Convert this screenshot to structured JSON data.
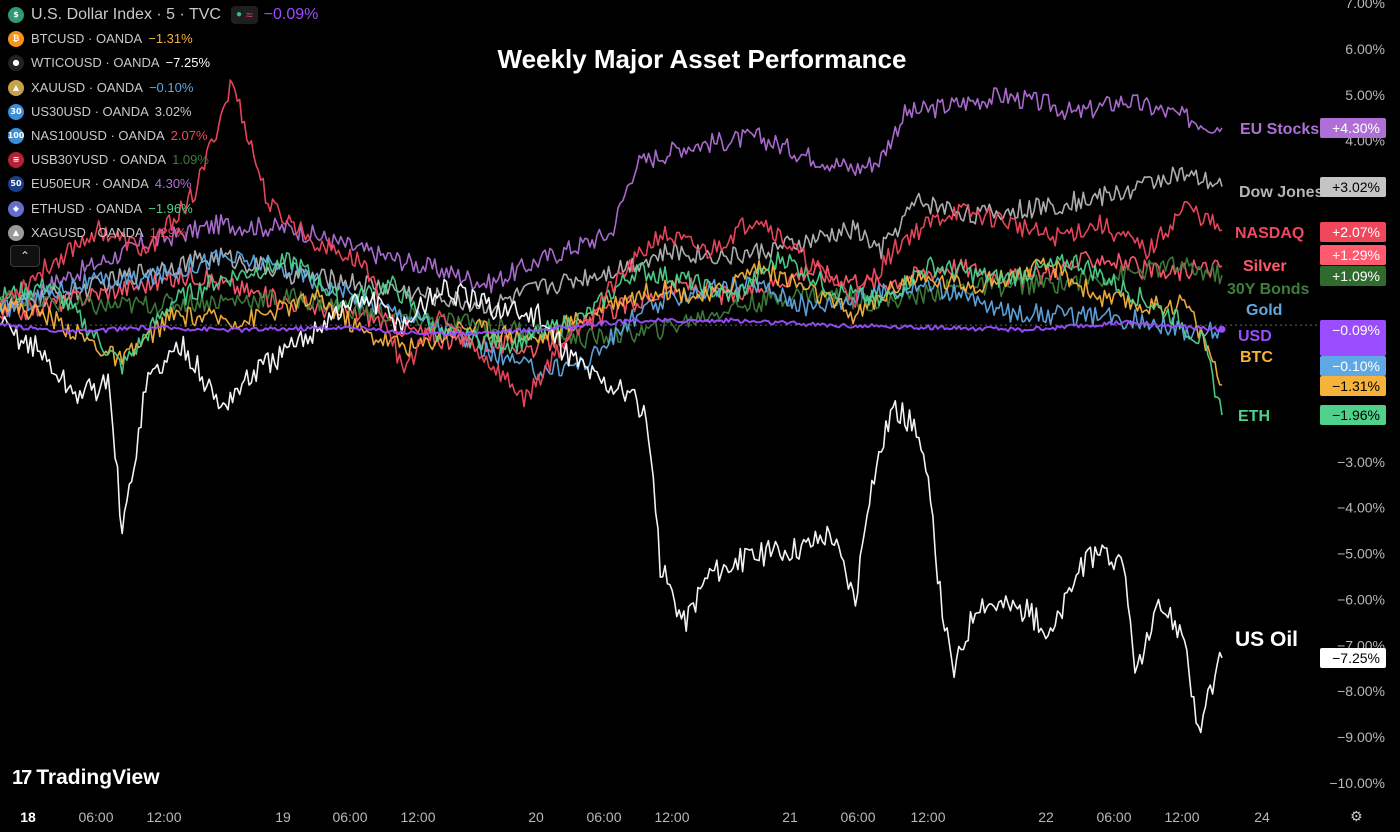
{
  "title": "Weekly Major Asset Performance",
  "legend": {
    "main": {
      "symbol": "U.S. Dollar Index · 5 · TVC",
      "value": "−0.09%",
      "icon_color": "#2e9c6e",
      "icon_glyph": "$",
      "value_color": "#9a4dff"
    },
    "items": [
      {
        "symbol": "BTCUSD · OANDA",
        "value": "−1.31%",
        "icon_color": "#f7931a",
        "icon_glyph": "₿",
        "value_color": "#f7b23b"
      },
      {
        "symbol": "WTICOUSD · OANDA",
        "value": "−7.25%",
        "icon_color": "#222222",
        "icon_glyph": "●",
        "value_color": "#ffffff"
      },
      {
        "symbol": "XAUUSD · OANDA",
        "value": "−0.10%",
        "icon_color": "#c8a24a",
        "icon_glyph": "▲",
        "value_color": "#5fa8e3"
      },
      {
        "symbol": "US30USD · OANDA",
        "value": "3.02%",
        "icon_color": "#3c8ed6",
        "icon_glyph": "30",
        "value_color": "#c9c9c9"
      },
      {
        "symbol": "NAS100USD · OANDA",
        "value": "2.07%",
        "icon_color": "#3c8ed6",
        "icon_glyph": "100",
        "value_color": "#f0475d"
      },
      {
        "symbol": "USB30YUSD · OANDA",
        "value": "1.09%",
        "icon_color": "#b22234",
        "icon_glyph": "≡",
        "value_color": "#3f7d3a"
      },
      {
        "symbol": "EU50EUR · OANDA",
        "value": "4.30%",
        "icon_color": "#1a3e8c",
        "icon_glyph": "50",
        "value_color": "#b06fd6"
      },
      {
        "symbol": "ETHUSD · OANDA",
        "value": "−1.96%",
        "icon_color": "#6270c9",
        "icon_glyph": "◆",
        "value_color": "#4fd18b"
      },
      {
        "symbol": "XAGUSD · OANDA",
        "value": "1.29%",
        "icon_color": "#9a9a9a",
        "icon_glyph": "▲",
        "value_color": "#f0475d"
      }
    ]
  },
  "collapse_glyph": "⌃",
  "logo": {
    "mark": "17",
    "text": "TradingView"
  },
  "settings_glyph": "⚙",
  "chart_data": {
    "type": "line",
    "y_unit": "%",
    "ylim": [
      -10.0,
      7.0
    ],
    "y_ticks": [
      "7.00%",
      "6.00%",
      "5.00%",
      "4.00%",
      "−3.00%",
      "−4.00%",
      "−5.00%",
      "−6.00%",
      "−7.00%",
      "−8.00%",
      "−9.00%",
      "−10.00%"
    ],
    "x_ticks": [
      "18",
      "06:00",
      "12:00",
      "19",
      "06:00",
      "12:00",
      "20",
      "06:00",
      "12:00",
      "21",
      "06:00",
      "12:00",
      "22",
      "06:00",
      "12:00",
      "24"
    ],
    "x_ticks_bold": [
      "18"
    ],
    "series": [
      {
        "name": "EU Stocks",
        "color": "#b06fd6",
        "tag": "+4.30%",
        "final": 4.3,
        "points": [
          [
            0,
            0.3
          ],
          [
            0.05,
            1.0
          ],
          [
            0.12,
            1.8
          ],
          [
            0.18,
            2.2
          ],
          [
            0.24,
            2.1
          ],
          [
            0.3,
            1.6
          ],
          [
            0.36,
            1.2
          ],
          [
            0.4,
            0.9
          ],
          [
            0.44,
            1.4
          ],
          [
            0.5,
            2.0
          ],
          [
            0.52,
            3.5
          ],
          [
            0.56,
            3.9
          ],
          [
            0.62,
            4.1
          ],
          [
            0.66,
            3.7
          ],
          [
            0.7,
            3.4
          ],
          [
            0.72,
            3.6
          ],
          [
            0.74,
            4.6
          ],
          [
            0.78,
            4.8
          ],
          [
            0.82,
            5.0
          ],
          [
            0.86,
            4.8
          ],
          [
            0.88,
            4.6
          ],
          [
            0.92,
            4.9
          ],
          [
            0.96,
            4.6
          ],
          [
            1.0,
            4.3
          ]
        ]
      },
      {
        "name": "Dow Jones",
        "color": "#b5b5b5",
        "tag": "+3.02%",
        "final": 3.02,
        "points": [
          [
            0,
            0.4
          ],
          [
            0.06,
            0.7
          ],
          [
            0.12,
            1.2
          ],
          [
            0.18,
            1.5
          ],
          [
            0.24,
            1.1
          ],
          [
            0.3,
            0.9
          ],
          [
            0.36,
            0.6
          ],
          [
            0.4,
            0.4
          ],
          [
            0.44,
            0.8
          ],
          [
            0.5,
            1.2
          ],
          [
            0.55,
            1.6
          ],
          [
            0.6,
            1.5
          ],
          [
            0.66,
            1.8
          ],
          [
            0.7,
            2.1
          ],
          [
            0.72,
            1.6
          ],
          [
            0.75,
            2.7
          ],
          [
            0.8,
            2.4
          ],
          [
            0.86,
            2.6
          ],
          [
            0.92,
            2.9
          ],
          [
            0.96,
            3.3
          ],
          [
            1.0,
            3.02
          ]
        ]
      },
      {
        "name": "NASDAQ",
        "color": "#f0475d",
        "tag": "+2.07%",
        "final": 2.07,
        "points": [
          [
            0,
            0.5
          ],
          [
            0.04,
            1.3
          ],
          [
            0.08,
            2.1
          ],
          [
            0.12,
            1.6
          ],
          [
            0.16,
            2.9
          ],
          [
            0.19,
            5.3
          ],
          [
            0.22,
            2.6
          ],
          [
            0.26,
            1.8
          ],
          [
            0.3,
            1.3
          ],
          [
            0.33,
            -1.0
          ],
          [
            0.36,
            0.2
          ],
          [
            0.4,
            -0.8
          ],
          [
            0.43,
            -1.6
          ],
          [
            0.46,
            -0.4
          ],
          [
            0.5,
            0.8
          ],
          [
            0.54,
            2.0
          ],
          [
            0.58,
            1.6
          ],
          [
            0.62,
            2.4
          ],
          [
            0.66,
            1.4
          ],
          [
            0.7,
            0.6
          ],
          [
            0.74,
            1.9
          ],
          [
            0.78,
            2.5
          ],
          [
            0.82,
            2.3
          ],
          [
            0.86,
            1.9
          ],
          [
            0.9,
            2.2
          ],
          [
            0.94,
            1.6
          ],
          [
            0.97,
            2.6
          ],
          [
            1.0,
            2.07
          ]
        ]
      },
      {
        "name": "Silver",
        "color": "#ff5a6e",
        "tag": "+1.29%",
        "final": 1.29,
        "points": [
          [
            0,
            0.2
          ],
          [
            0.08,
            0.7
          ],
          [
            0.16,
            1.1
          ],
          [
            0.22,
            0.6
          ],
          [
            0.3,
            0.2
          ],
          [
            0.36,
            -0.3
          ],
          [
            0.44,
            -0.5
          ],
          [
            0.5,
            0.3
          ],
          [
            0.56,
            0.9
          ],
          [
            0.6,
            0.6
          ],
          [
            0.66,
            1.2
          ],
          [
            0.72,
            0.9
          ],
          [
            0.78,
            1.3
          ],
          [
            0.84,
            1.0
          ],
          [
            0.9,
            1.5
          ],
          [
            0.95,
            1.1
          ],
          [
            1.0,
            1.29
          ]
        ]
      },
      {
        "name": "30Y Bonds",
        "color": "#3f7d3a",
        "tag": "+1.09%",
        "final": 1.09,
        "points": [
          [
            0,
            0.6
          ],
          [
            0.08,
            0.4
          ],
          [
            0.16,
            0.5
          ],
          [
            0.24,
            0.6
          ],
          [
            0.32,
            0.2
          ],
          [
            0.4,
            0.0
          ],
          [
            0.48,
            -0.3
          ],
          [
            0.54,
            -0.1
          ],
          [
            0.6,
            0.4
          ],
          [
            0.66,
            0.7
          ],
          [
            0.72,
            0.5
          ],
          [
            0.78,
            0.8
          ],
          [
            0.86,
            0.9
          ],
          [
            0.92,
            1.1
          ],
          [
            0.96,
            1.3
          ],
          [
            1.0,
            1.09
          ]
        ]
      },
      {
        "name": "Gold",
        "color": "#5fa8e3",
        "tag": "−0.10%",
        "final": -0.1,
        "points": [
          [
            0,
            0.3
          ],
          [
            0.06,
            0.9
          ],
          [
            0.12,
            1.0
          ],
          [
            0.18,
            1.5
          ],
          [
            0.24,
            1.2
          ],
          [
            0.3,
            0.5
          ],
          [
            0.36,
            0.0
          ],
          [
            0.4,
            -0.6
          ],
          [
            0.44,
            -1.0
          ],
          [
            0.48,
            -0.8
          ],
          [
            0.52,
            0.2
          ],
          [
            0.56,
            0.7
          ],
          [
            0.62,
            0.9
          ],
          [
            0.66,
            0.4
          ],
          [
            0.7,
            0.6
          ],
          [
            0.76,
            0.9
          ],
          [
            0.82,
            0.3
          ],
          [
            0.88,
            0.2
          ],
          [
            0.94,
            0.1
          ],
          [
            0.98,
            -0.2
          ],
          [
            1.0,
            -0.1
          ]
        ]
      },
      {
        "name": "USD",
        "color": "#9a4dff",
        "tag": "−0.09%",
        "final": -0.09,
        "points": [
          [
            0,
            0.0
          ],
          [
            0.06,
            -0.15
          ],
          [
            0.12,
            -0.05
          ],
          [
            0.2,
            -0.1
          ],
          [
            0.28,
            -0.05
          ],
          [
            0.36,
            -0.2
          ],
          [
            0.44,
            -0.1
          ],
          [
            0.52,
            0.1
          ],
          [
            0.6,
            0.1
          ],
          [
            0.68,
            0.0
          ],
          [
            0.76,
            -0.05
          ],
          [
            0.84,
            -0.1
          ],
          [
            0.92,
            0.05
          ],
          [
            1.0,
            -0.09
          ]
        ]
      },
      {
        "name": "BTC",
        "color": "#f7b23b",
        "tag": "−1.31%",
        "final": -1.31,
        "points": [
          [
            0,
            0.5
          ],
          [
            0.04,
            0.2
          ],
          [
            0.1,
            -0.8
          ],
          [
            0.14,
            0.2
          ],
          [
            0.2,
            0.1
          ],
          [
            0.26,
            0.6
          ],
          [
            0.3,
            -0.2
          ],
          [
            0.34,
            -0.5
          ],
          [
            0.38,
            0.0
          ],
          [
            0.44,
            -0.3
          ],
          [
            0.5,
            0.5
          ],
          [
            0.54,
            0.8
          ],
          [
            0.58,
            0.6
          ],
          [
            0.62,
            1.3
          ],
          [
            0.66,
            0.8
          ],
          [
            0.7,
            0.2
          ],
          [
            0.74,
            1.0
          ],
          [
            0.8,
            0.9
          ],
          [
            0.86,
            1.3
          ],
          [
            0.9,
            0.6
          ],
          [
            0.94,
            0.4
          ],
          [
            0.97,
            0.5
          ],
          [
            0.99,
            -0.6
          ],
          [
            1.0,
            -1.31
          ]
        ]
      },
      {
        "name": "ETH",
        "color": "#4fd18b",
        "tag": "−1.96%",
        "final": -1.96,
        "points": [
          [
            0,
            0.6
          ],
          [
            0.04,
            0.9
          ],
          [
            0.1,
            -0.9
          ],
          [
            0.14,
            0.5
          ],
          [
            0.18,
            1.0
          ],
          [
            0.24,
            1.4
          ],
          [
            0.28,
            0.5
          ],
          [
            0.32,
            0.9
          ],
          [
            0.36,
            -0.2
          ],
          [
            0.42,
            -0.4
          ],
          [
            0.48,
            0.2
          ],
          [
            0.52,
            1.2
          ],
          [
            0.56,
            1.0
          ],
          [
            0.6,
            0.6
          ],
          [
            0.64,
            1.5
          ],
          [
            0.68,
            0.8
          ],
          [
            0.72,
            0.5
          ],
          [
            0.76,
            1.3
          ],
          [
            0.82,
            1.0
          ],
          [
            0.88,
            1.4
          ],
          [
            0.92,
            0.8
          ],
          [
            0.96,
            0.2
          ],
          [
            0.985,
            -0.4
          ],
          [
            1.0,
            -1.96
          ]
        ]
      },
      {
        "name": "US Oil",
        "color": "#ffffff",
        "tag": "−7.25%",
        "final": -7.25,
        "points": [
          [
            0,
            0.0
          ],
          [
            0.03,
            -0.5
          ],
          [
            0.06,
            -1.5
          ],
          [
            0.09,
            -1.3
          ],
          [
            0.1,
            -4.6
          ],
          [
            0.12,
            -1.2
          ],
          [
            0.15,
            -0.4
          ],
          [
            0.18,
            -1.8
          ],
          [
            0.21,
            -1.0
          ],
          [
            0.24,
            -0.5
          ],
          [
            0.27,
            0.2
          ],
          [
            0.3,
            0.6
          ],
          [
            0.33,
            0.0
          ],
          [
            0.36,
            0.8
          ],
          [
            0.4,
            0.4
          ],
          [
            0.44,
            0.2
          ],
          [
            0.46,
            -0.5
          ],
          [
            0.49,
            -1.2
          ],
          [
            0.51,
            -1.4
          ],
          [
            0.53,
            -2.0
          ],
          [
            0.54,
            -5.2
          ],
          [
            0.56,
            -6.5
          ],
          [
            0.58,
            -5.4
          ],
          [
            0.62,
            -5.0
          ],
          [
            0.66,
            -4.8
          ],
          [
            0.68,
            -4.5
          ],
          [
            0.7,
            -6.0
          ],
          [
            0.71,
            -3.8
          ],
          [
            0.73,
            -1.8
          ],
          [
            0.75,
            -2.2
          ],
          [
            0.76,
            -3.6
          ],
          [
            0.77,
            -6.0
          ],
          [
            0.78,
            -7.6
          ],
          [
            0.8,
            -6.0
          ],
          [
            0.84,
            -6.2
          ],
          [
            0.86,
            -6.8
          ],
          [
            0.88,
            -5.5
          ],
          [
            0.9,
            -4.8
          ],
          [
            0.92,
            -5.4
          ],
          [
            0.93,
            -7.6
          ],
          [
            0.95,
            -6.1
          ],
          [
            0.97,
            -6.8
          ],
          [
            0.98,
            -8.9
          ],
          [
            1.0,
            -7.25
          ]
        ]
      }
    ]
  }
}
